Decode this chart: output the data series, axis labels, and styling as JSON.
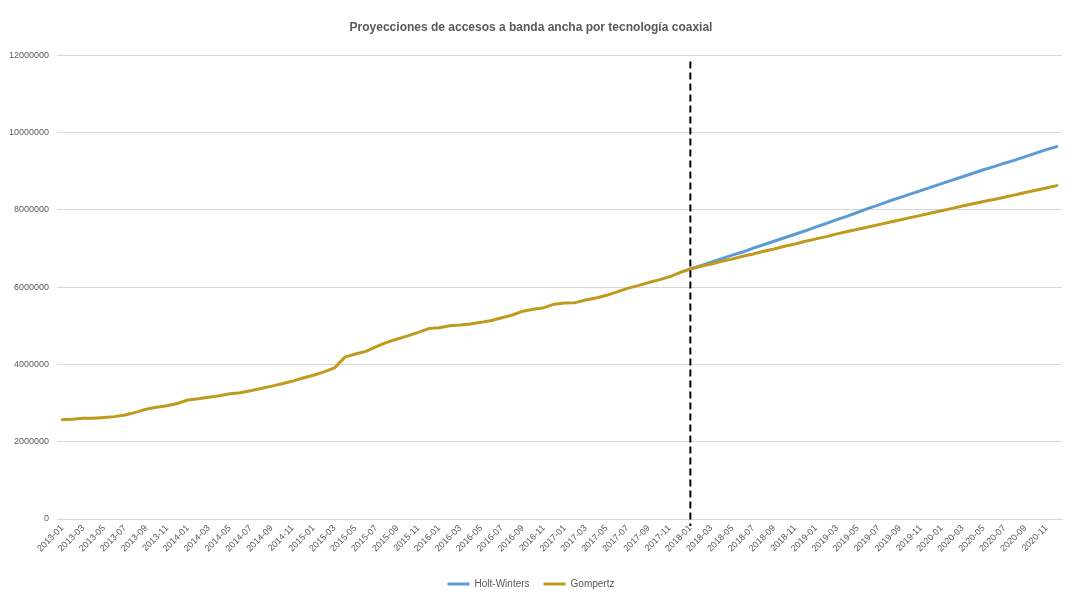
{
  "chart_data": {
    "type": "line",
    "title": "Proyecciones de accesos a banda ancha por tecnología coaxial",
    "categories": [
      "2013-01",
      null,
      "2013-03",
      null,
      "2013-05",
      null,
      "2013-07",
      null,
      "2013-09",
      null,
      "2013-11",
      null,
      "2014-01",
      null,
      "2014-03",
      null,
      "2014-05",
      null,
      "2014-07",
      null,
      "2014-09",
      null,
      "2014-11",
      null,
      "2015-01",
      null,
      "2015-03",
      null,
      "2015-05",
      null,
      "2015-07",
      null,
      "2015-09",
      null,
      "2015-11",
      null,
      "2016-01",
      null,
      "2016-03",
      null,
      "2016-05",
      null,
      "2016-07",
      null,
      "2016-09",
      null,
      "2016-11",
      null,
      "2017-01",
      null,
      "2017-03",
      null,
      "2017-05",
      null,
      "2017-07",
      null,
      "2017-09",
      null,
      "2017-11",
      null,
      "2018-01",
      null,
      "2018-03",
      null,
      "2018-05",
      null,
      "2018-07",
      null,
      "2018-09",
      null,
      "2018-11",
      null,
      "2019-01",
      null,
      "2019-03",
      null,
      "2019-05",
      null,
      "2019-07",
      null,
      "2019-09",
      null,
      "2019-11",
      null,
      "2020-01",
      null,
      "2020-03",
      null,
      "2020-05",
      null,
      "2020-07",
      null,
      "2020-09",
      null,
      "2020-11",
      null
    ],
    "series": [
      {
        "name": "Holt-Winters",
        "color": "#5b9bd5",
        "values": [
          null,
          null,
          null,
          null,
          null,
          null,
          null,
          null,
          null,
          null,
          null,
          null,
          null,
          null,
          null,
          null,
          null,
          null,
          null,
          null,
          null,
          null,
          null,
          null,
          null,
          null,
          null,
          null,
          null,
          null,
          null,
          null,
          null,
          null,
          null,
          null,
          null,
          null,
          null,
          null,
          null,
          null,
          null,
          null,
          null,
          null,
          null,
          null,
          null,
          null,
          null,
          null,
          null,
          null,
          null,
          null,
          null,
          null,
          null,
          null,
          6470000,
          6560000,
          6650000,
          6740000,
          6830000,
          6910000,
          7010000,
          7100000,
          7190000,
          7280000,
          7370000,
          7460000,
          7560000,
          7650000,
          7750000,
          7840000,
          7940000,
          8040000,
          8130000,
          8230000,
          8320000,
          8410000,
          8500000,
          8590000,
          8680000,
          8770000,
          8860000,
          8950000,
          9040000,
          9120000,
          9210000,
          9290000,
          9380000,
          9470000,
          9560000,
          9640000
        ]
      },
      {
        "name": "Gompertz",
        "color": "#bf9a1c",
        "values": [
          2570000,
          2580000,
          2610000,
          2610000,
          2630000,
          2650000,
          2690000,
          2760000,
          2840000,
          2890000,
          2930000,
          2990000,
          3080000,
          3110000,
          3150000,
          3190000,
          3240000,
          3270000,
          3320000,
          3380000,
          3440000,
          3500000,
          3570000,
          3650000,
          3720000,
          3810000,
          3910000,
          4190000,
          4270000,
          4340000,
          4460000,
          4570000,
          4660000,
          4740000,
          4830000,
          4930000,
          4950000,
          5000000,
          5020000,
          5050000,
          5090000,
          5140000,
          5210000,
          5280000,
          5380000,
          5430000,
          5470000,
          5560000,
          5590000,
          5600000,
          5670000,
          5720000,
          5790000,
          5880000,
          5970000,
          6040000,
          6120000,
          6190000,
          6270000,
          6380000,
          6470000,
          6540000,
          6600000,
          6670000,
          6730000,
          6800000,
          6860000,
          6930000,
          6990000,
          7060000,
          7120000,
          7190000,
          7250000,
          7310000,
          7380000,
          7440000,
          7500000,
          7560000,
          7620000,
          7680000,
          7740000,
          7800000,
          7860000,
          7920000,
          7980000,
          8040000,
          8100000,
          8160000,
          8220000,
          8270000,
          8330000,
          8390000,
          8450000,
          8510000,
          8570000,
          8630000
        ]
      }
    ],
    "ylim": [
      0,
      12000000
    ],
    "yticks": [
      0,
      2000000,
      4000000,
      6000000,
      8000000,
      10000000,
      12000000
    ],
    "grid": "y",
    "legend": "bottom",
    "ref_lines": [
      {
        "axis": "x",
        "value": "2018-01",
        "color": "#000000",
        "line_style": "dashed"
      }
    ]
  }
}
